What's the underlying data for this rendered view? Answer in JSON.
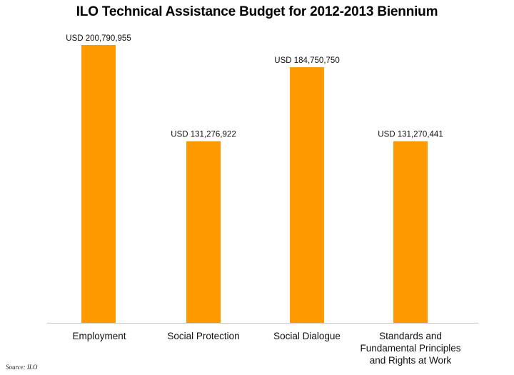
{
  "chart_data": {
    "type": "bar",
    "title": "ILO Technical Assistance Budget for 2012-2013 Biennium",
    "categories": [
      "Employment",
      "Social Protection",
      "Social Dialogue",
      "Standards and Fundamental Principles and Rights at Work"
    ],
    "values": [
      200790955,
      131276922,
      184750750,
      131270441
    ],
    "value_labels": [
      "USD 200,790,955",
      "USD 131,276,922",
      "USD 184,750,750",
      "USD 131,270,441"
    ],
    "ylim": [
      0,
      200790955
    ],
    "bar_color": "#FF9900",
    "grid": false,
    "xlabel": "",
    "ylabel": ""
  },
  "source": "Source: ILO"
}
